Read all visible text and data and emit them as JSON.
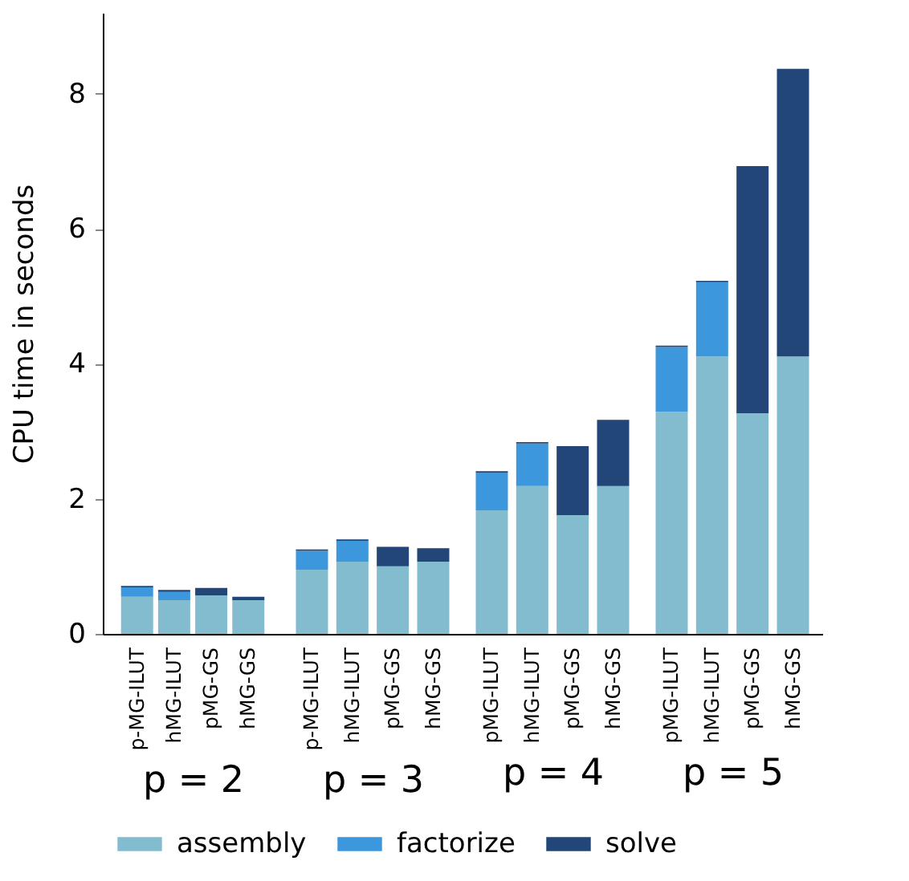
{
  "chart_data": {
    "type": "bar",
    "stacked": true,
    "ylabel": "CPU time in seconds",
    "ylim": [
      0,
      9.2
    ],
    "yticks": [
      0,
      2,
      4,
      6,
      8
    ],
    "legend": "bottom",
    "categories": [
      "p-MG-ILUT",
      "hMG-ILUT",
      "pMG-GS",
      "hMG-GS",
      "p-MG-ILUT",
      "hMG-ILUT",
      "pMG-GS",
      "hMG-GS",
      "pMG-ILUT",
      "hMG-ILUT",
      "pMG-GS",
      "hMG-GS",
      "pMG-ILUT",
      "hMG-ILUT",
      "pMG-GS",
      "hMG-GS"
    ],
    "annotations": [
      "p = 2",
      "p = 3",
      "p = 4",
      "p = 5"
    ],
    "series": [
      {
        "name": "assembly",
        "color": "#84bccf",
        "values": [
          0.55,
          0.5,
          0.57,
          0.5,
          0.95,
          1.07,
          1.0,
          1.07,
          1.83,
          2.19,
          1.76,
          2.19,
          3.29,
          4.11,
          3.27,
          4.11
        ]
      },
      {
        "name": "factorize",
        "color": "#3d97dc",
        "values": [
          0.14,
          0.12,
          0,
          0,
          0.28,
          0.31,
          0,
          0,
          0.56,
          0.63,
          0,
          0,
          0.96,
          1.1,
          0,
          0
        ]
      },
      {
        "name": "solve",
        "color": "#214677",
        "values": [
          0.02,
          0.03,
          0.11,
          0.05,
          0.02,
          0.02,
          0.29,
          0.2,
          0.02,
          0.02,
          1.02,
          0.98,
          0.02,
          0.02,
          3.66,
          4.26
        ]
      }
    ]
  }
}
